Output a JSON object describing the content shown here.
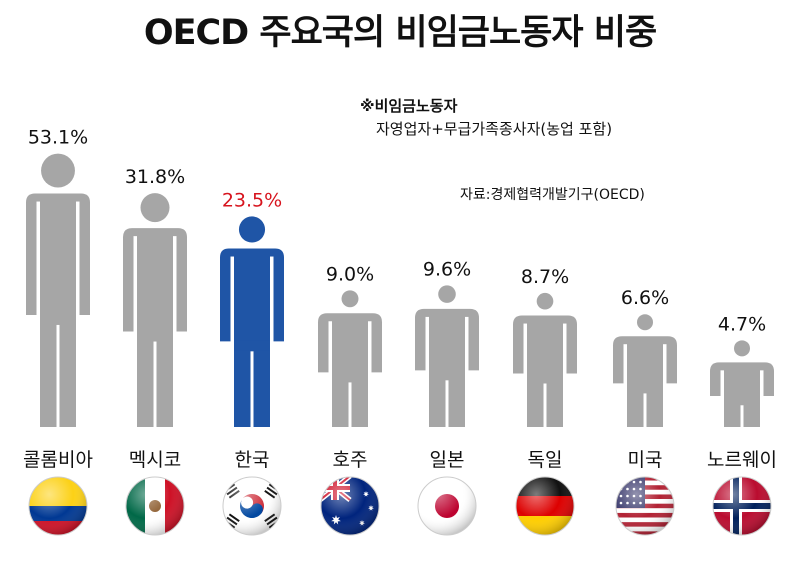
{
  "chart_data": {
    "type": "bar",
    "title": "OECD 주요국의 비임금노동자 비중",
    "note": {
      "title": "※비임금노동자",
      "body": "자영업자+무급가족종사자(농업 포함)"
    },
    "source": "자료:경제협력개발기구(OECD)",
    "categories": [
      "콜롬비아",
      "멕시코",
      "한국",
      "호주",
      "일본",
      "독일",
      "미국",
      "노르웨이"
    ],
    "values": [
      53.1,
      31.8,
      23.5,
      9.0,
      9.6,
      8.7,
      6.6,
      4.7
    ],
    "value_labels": [
      "53.1%",
      "31.8%",
      "23.5%",
      "9.0%",
      "9.6%",
      "8.7%",
      "6.6%",
      "4.7%"
    ],
    "flags": [
      "colombia-flag",
      "mexico-flag",
      "korea-flag",
      "australia-flag",
      "japan-flag",
      "germany-flag",
      "usa-flag",
      "norway-flag"
    ],
    "colors": {
      "figure": "#a6a6a6",
      "highlight": "#1f55a6",
      "highlight_label": "#d7141e",
      "text": "#111111"
    },
    "highlight_index": 2
  }
}
